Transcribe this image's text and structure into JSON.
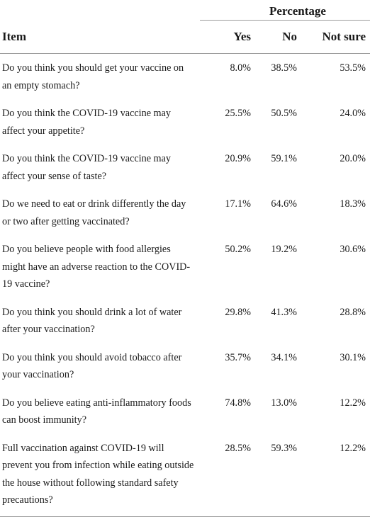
{
  "table": {
    "group_header": "Percentage",
    "columns": {
      "item": "Item",
      "yes": "Yes",
      "no": "No",
      "not_sure": "Not sure"
    },
    "rows": [
      {
        "item": "Do you think you should get your vaccine on an empty stomach?",
        "yes": "8.0%",
        "no": "38.5%",
        "not_sure": "53.5%"
      },
      {
        "item": "Do you think the COVID-19 vaccine may affect your appetite?",
        "yes": "25.5%",
        "no": "50.5%",
        "not_sure": "24.0%"
      },
      {
        "item": "Do you think the COVID-19 vaccine may affect your sense of taste?",
        "yes": "20.9%",
        "no": "59.1%",
        "not_sure": "20.0%"
      },
      {
        "item": "Do we need to eat or drink differently the day or two after getting vaccinated?",
        "yes": "17.1%",
        "no": "64.6%",
        "not_sure": "18.3%"
      },
      {
        "item": "Do you believe people with food allergies might have an adverse reaction to the COVID-19 vaccine?",
        "yes": "50.2%",
        "no": "19.2%",
        "not_sure": "30.6%"
      },
      {
        "item": "Do you think you should drink a lot of water after your vaccination?",
        "yes": "29.8%",
        "no": "41.3%",
        "not_sure": "28.8%"
      },
      {
        "item": "Do you think you should avoid tobacco after your vaccination?",
        "yes": "35.7%",
        "no": "34.1%",
        "not_sure": "30.1%"
      },
      {
        "item": "Do you believe eating anti-inflammatory foods can boost immunity?",
        "yes": "74.8%",
        "no": "13.0%",
        "not_sure": "12.2%"
      },
      {
        "item": "Full vaccination against COVID-19 will prevent you from infection while eating outside the house without following standard safety precautions?",
        "yes": "28.5%",
        "no": "59.3%",
        "not_sure": "12.2%"
      }
    ]
  }
}
